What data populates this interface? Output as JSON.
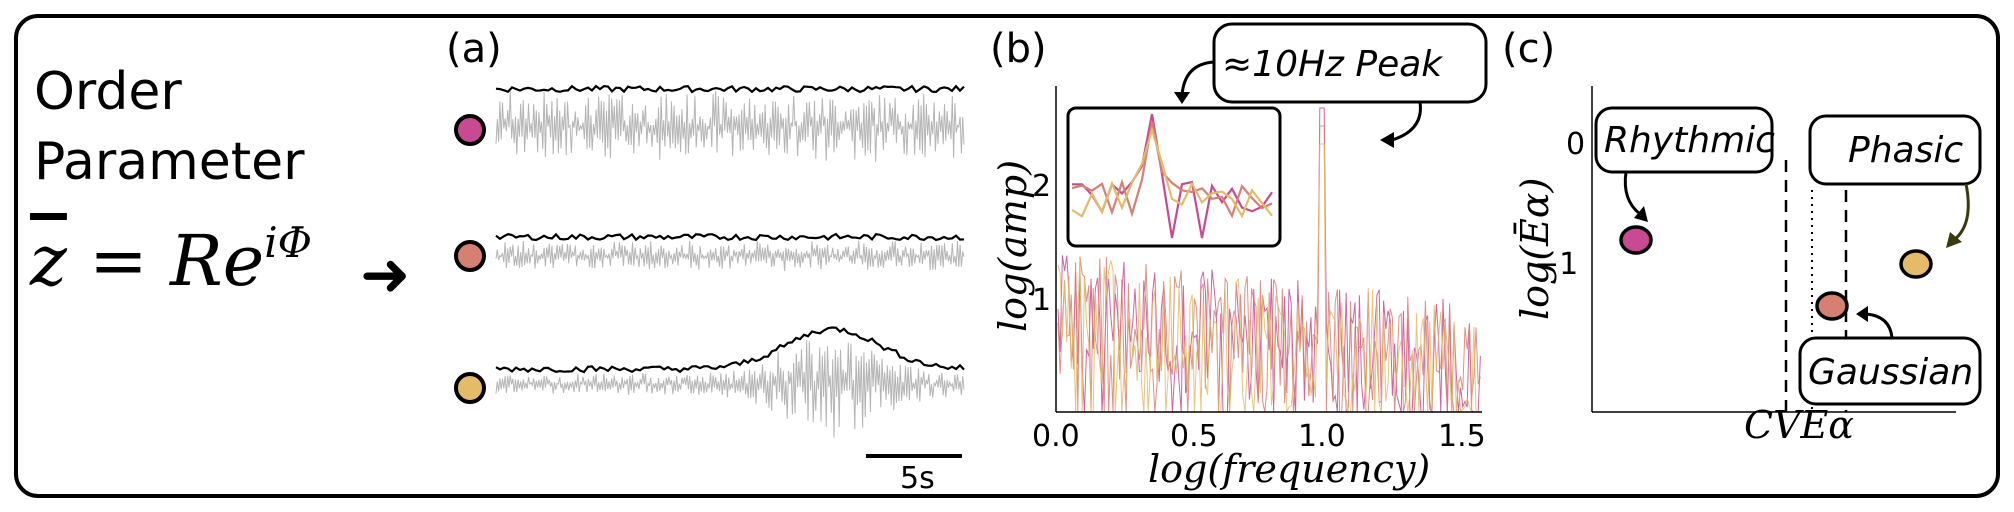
{
  "order_parameter": {
    "title_line1": "Order",
    "title_line2": "Parameter",
    "eq_lhs": "z",
    "eq_mid": " = Re",
    "eq_sup": "iΦ",
    "arrow": "➜"
  },
  "panel_a": {
    "label": "(a)",
    "scale_bar_label": "5s",
    "circle_colors": [
      "#c84a93",
      "#d67f73",
      "#e3bb6a"
    ]
  },
  "panel_b": {
    "label": "(b)",
    "callout": "≈10Hz Peak",
    "xlabel": "log(frequency)",
    "ylabel": "log(amp)",
    "x_ticks": [
      "0.0",
      "0.5",
      "1.0",
      "1.5"
    ],
    "y_ticks": [
      "1",
      "2"
    ],
    "series_colors": [
      "#c84a93",
      "#d67f73",
      "#e3bb6a"
    ]
  },
  "panel_c": {
    "label": "(c)",
    "xlabel": "CVEα",
    "ylabel": "log(Ēα)",
    "y_ticks": [
      "0",
      "−1"
    ],
    "callout_rhythmic": "Rhythmic",
    "callout_phasic": "Phasic",
    "callout_gaussian": "Gaussian"
  },
  "chart_data": {
    "type": "scatter",
    "xlabel": "CVEα",
    "ylabel": "log(Ēα)",
    "points": [
      {
        "label": "Rhythmic",
        "color": "#c84a93",
        "y": -0.8
      },
      {
        "label": "Gaussian",
        "color": "#d67f73",
        "y": -1.35
      },
      {
        "label": "Phasic",
        "color": "#e3bb6a",
        "y": -1.0
      }
    ]
  }
}
